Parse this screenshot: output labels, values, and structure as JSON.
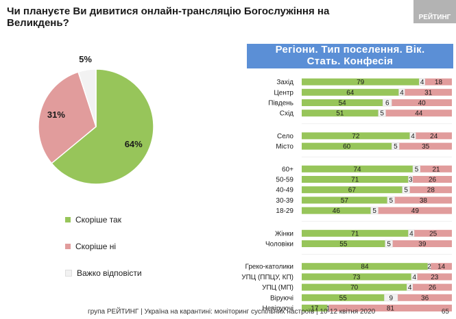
{
  "question": "Чи плануєте Ви дивитися онлайн-трансляцію Богослужіння на Великдень?",
  "brand": "РЕЙТИНГ",
  "header": {
    "line1": "Регіони. Тип поселення. Вік.",
    "line2": "Стать. Конфесія"
  },
  "footer": "група РЕЙТИНГ | Україна на карантині: моніторинг суспільних настроїв  | 10-12 квітня  2020",
  "page_number": "65",
  "colors": {
    "yes": "#97c55a",
    "no": "#e19c9c",
    "dk": "#f2f2f2",
    "header": "#5b8fd6"
  },
  "legend": [
    {
      "label": "Скоріше так",
      "color": "#97c55a"
    },
    {
      "label": "Скоріше ні",
      "color": "#e19c9c"
    },
    {
      "label": "Важко відповісти",
      "color": "#f2f2f2"
    }
  ],
  "chart_data": [
    {
      "type": "pie",
      "categories": [
        "Скоріше так",
        "Скоріше ні",
        "Важко відповісти"
      ],
      "values": [
        64,
        31,
        5
      ],
      "labels": [
        "64%",
        "31%",
        "5%"
      ],
      "colors": [
        "#97c55a",
        "#e19c9c",
        "#f2f2f2"
      ]
    },
    {
      "type": "bar",
      "orientation": "horizontal",
      "stacked": true,
      "xlim": [
        0,
        100
      ],
      "series_names": [
        "Скоріше так",
        "Важко відповісти",
        "Скоріше ні"
      ],
      "groups": [
        {
          "rows": [
            {
              "label": "Захід",
              "values": [
                79,
                4,
                18
              ]
            },
            {
              "label": "Центр",
              "values": [
                64,
                4,
                31
              ]
            },
            {
              "label": "Південь",
              "values": [
                54,
                6,
                40
              ]
            },
            {
              "label": "Схід",
              "values": [
                51,
                5,
                44
              ]
            }
          ]
        },
        {
          "rows": [
            {
              "label": "Село",
              "values": [
                72,
                4,
                24
              ]
            },
            {
              "label": "Місто",
              "values": [
                60,
                5,
                35
              ]
            }
          ]
        },
        {
          "rows": [
            {
              "label": "60+",
              "values": [
                74,
                5,
                21
              ]
            },
            {
              "label": "50-59",
              "values": [
                71,
                3,
                26
              ]
            },
            {
              "label": "40-49",
              "values": [
                67,
                5,
                28
              ]
            },
            {
              "label": "30-39",
              "values": [
                57,
                5,
                38
              ]
            },
            {
              "label": "18-29",
              "values": [
                46,
                5,
                49
              ]
            }
          ]
        },
        {
          "rows": [
            {
              "label": "Жінки",
              "values": [
                71,
                4,
                25
              ]
            },
            {
              "label": "Чоловіки",
              "values": [
                55,
                5,
                39
              ]
            }
          ]
        },
        {
          "rows": [
            {
              "label": "Греко-католики",
              "values": [
                84,
                2,
                14
              ]
            },
            {
              "label": "УПЦ (ППЦУ, КП)",
              "values": [
                73,
                4,
                23
              ]
            },
            {
              "label": "УПЦ (МП)",
              "values": [
                70,
                4,
                26
              ]
            },
            {
              "label": "Віруючі",
              "values": [
                55,
                9,
                36
              ]
            },
            {
              "label": "Невіруючі",
              "values": [
                17,
                1,
                81
              ]
            }
          ]
        }
      ]
    }
  ]
}
